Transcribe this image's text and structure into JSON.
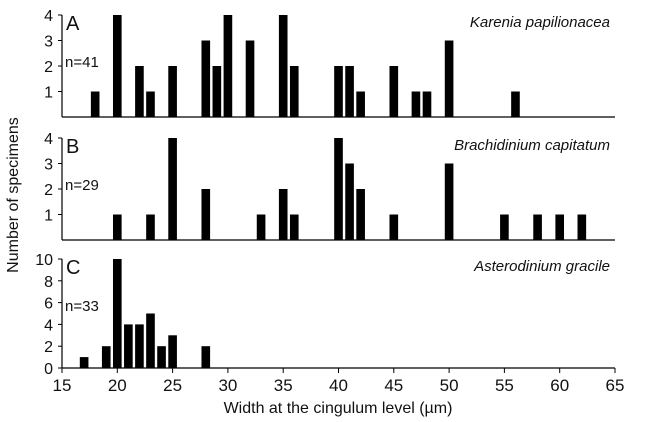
{
  "chart_data": {
    "type": "bar",
    "subtype": "histogram",
    "xlabel": "Width at the cingulum level (µm)",
    "ylabel": "Number of specimens",
    "xlim": [
      15,
      65
    ],
    "xticks": [
      15,
      20,
      25,
      30,
      35,
      40,
      45,
      50,
      55,
      60,
      65
    ],
    "bin_width": 1,
    "bar_color": "#000000",
    "grid": false,
    "panels": [
      {
        "letter": "A",
        "species": "Karenia papilionacea",
        "n_label": "n=41",
        "ylim": [
          0,
          4
        ],
        "yticks": [
          1,
          2,
          3,
          4
        ],
        "bins": [
          {
            "x": 18,
            "count": 1
          },
          {
            "x": 20,
            "count": 4
          },
          {
            "x": 22,
            "count": 2
          },
          {
            "x": 23,
            "count": 1
          },
          {
            "x": 25,
            "count": 2
          },
          {
            "x": 28,
            "count": 3
          },
          {
            "x": 29,
            "count": 2
          },
          {
            "x": 30,
            "count": 4
          },
          {
            "x": 32,
            "count": 3
          },
          {
            "x": 35,
            "count": 4
          },
          {
            "x": 36,
            "count": 2
          },
          {
            "x": 40,
            "count": 2
          },
          {
            "x": 41,
            "count": 2
          },
          {
            "x": 42,
            "count": 1
          },
          {
            "x": 45,
            "count": 2
          },
          {
            "x": 47,
            "count": 1
          },
          {
            "x": 48,
            "count": 1
          },
          {
            "x": 50,
            "count": 3
          },
          {
            "x": 56,
            "count": 1
          }
        ]
      },
      {
        "letter": "B",
        "species": "Brachidinium capitatum",
        "n_label": "n=29",
        "ylim": [
          0,
          4
        ],
        "yticks": [
          1,
          2,
          3,
          4
        ],
        "bins": [
          {
            "x": 20,
            "count": 1
          },
          {
            "x": 23,
            "count": 1
          },
          {
            "x": 25,
            "count": 4
          },
          {
            "x": 28,
            "count": 2
          },
          {
            "x": 33,
            "count": 1
          },
          {
            "x": 35,
            "count": 2
          },
          {
            "x": 36,
            "count": 1
          },
          {
            "x": 40,
            "count": 4
          },
          {
            "x": 41,
            "count": 3
          },
          {
            "x": 42,
            "count": 2
          },
          {
            "x": 45,
            "count": 1
          },
          {
            "x": 50,
            "count": 3
          },
          {
            "x": 55,
            "count": 1
          },
          {
            "x": 58,
            "count": 1
          },
          {
            "x": 60,
            "count": 1
          },
          {
            "x": 62,
            "count": 1
          }
        ]
      },
      {
        "letter": "C",
        "species": "Asterodinium gracile",
        "n_label": "n=33",
        "ylim": [
          0,
          10
        ],
        "yticks": [
          0,
          2,
          4,
          6,
          8,
          10
        ],
        "bins": [
          {
            "x": 17,
            "count": 1
          },
          {
            "x": 19,
            "count": 2
          },
          {
            "x": 20,
            "count": 10
          },
          {
            "x": 21,
            "count": 4
          },
          {
            "x": 22,
            "count": 4
          },
          {
            "x": 23,
            "count": 5
          },
          {
            "x": 24,
            "count": 2
          },
          {
            "x": 25,
            "count": 3
          },
          {
            "x": 28,
            "count": 2
          }
        ]
      }
    ]
  }
}
